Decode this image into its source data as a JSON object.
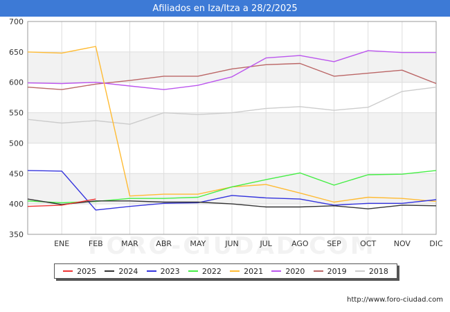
{
  "header": {
    "title": "Afiliados en Iza/Itza a 28/2/2025"
  },
  "footer": {
    "url": "http://www.foro-ciudad.com"
  },
  "watermark": "FORO-CIUDAD.COM",
  "chart_data": {
    "type": "line",
    "title": "Afiliados en Iza/Itza a 28/2/2025",
    "x_categories": [
      "",
      "ENE",
      "FEB",
      "MAR",
      "ABR",
      "MAY",
      "JUN",
      "JUL",
      "AGO",
      "SEP",
      "OCT",
      "NOV",
      "DIC"
    ],
    "ylim": [
      350,
      700
    ],
    "y_ticks": [
      350,
      400,
      450,
      500,
      550,
      600,
      650,
      700
    ],
    "grid": true,
    "banded_background": true,
    "legend_placement": "bottom",
    "series": [
      {
        "name": "2025",
        "color": "#ee3333",
        "values": [
          396,
          398,
          408,
          null,
          null,
          null,
          null,
          null,
          null,
          null,
          null,
          null,
          null
        ]
      },
      {
        "name": "2024",
        "color": "#333333",
        "values": [
          408,
          399,
          405,
          405,
          403,
          403,
          400,
          395,
          395,
          397,
          392,
          398,
          397
        ]
      },
      {
        "name": "2023",
        "color": "#3333dd",
        "values": [
          455,
          454,
          390,
          396,
          401,
          402,
          414,
          410,
          408,
          398,
          401,
          401,
          407
        ]
      },
      {
        "name": "2022",
        "color": "#44ee44",
        "values": [
          405,
          402,
          404,
          409,
          409,
          411,
          428,
          440,
          451,
          431,
          448,
          449,
          455
        ]
      },
      {
        "name": "2021",
        "color": "#ffbb33",
        "values": [
          650,
          648,
          659,
          413,
          416,
          416,
          428,
          432,
          418,
          403,
          411,
          409,
          404
        ]
      },
      {
        "name": "2020",
        "color": "#bb55ee",
        "values": [
          599,
          598,
          600,
          594,
          588,
          595,
          609,
          640,
          644,
          634,
          652,
          649,
          649
        ]
      },
      {
        "name": "2019",
        "color": "#bb6666",
        "values": [
          592,
          588,
          597,
          603,
          610,
          610,
          622,
          629,
          631,
          610,
          615,
          620,
          598
        ]
      },
      {
        "name": "2018",
        "color": "#cccccc",
        "values": [
          539,
          533,
          537,
          531,
          550,
          547,
          550,
          557,
          560,
          554,
          559,
          585,
          592
        ]
      }
    ]
  }
}
